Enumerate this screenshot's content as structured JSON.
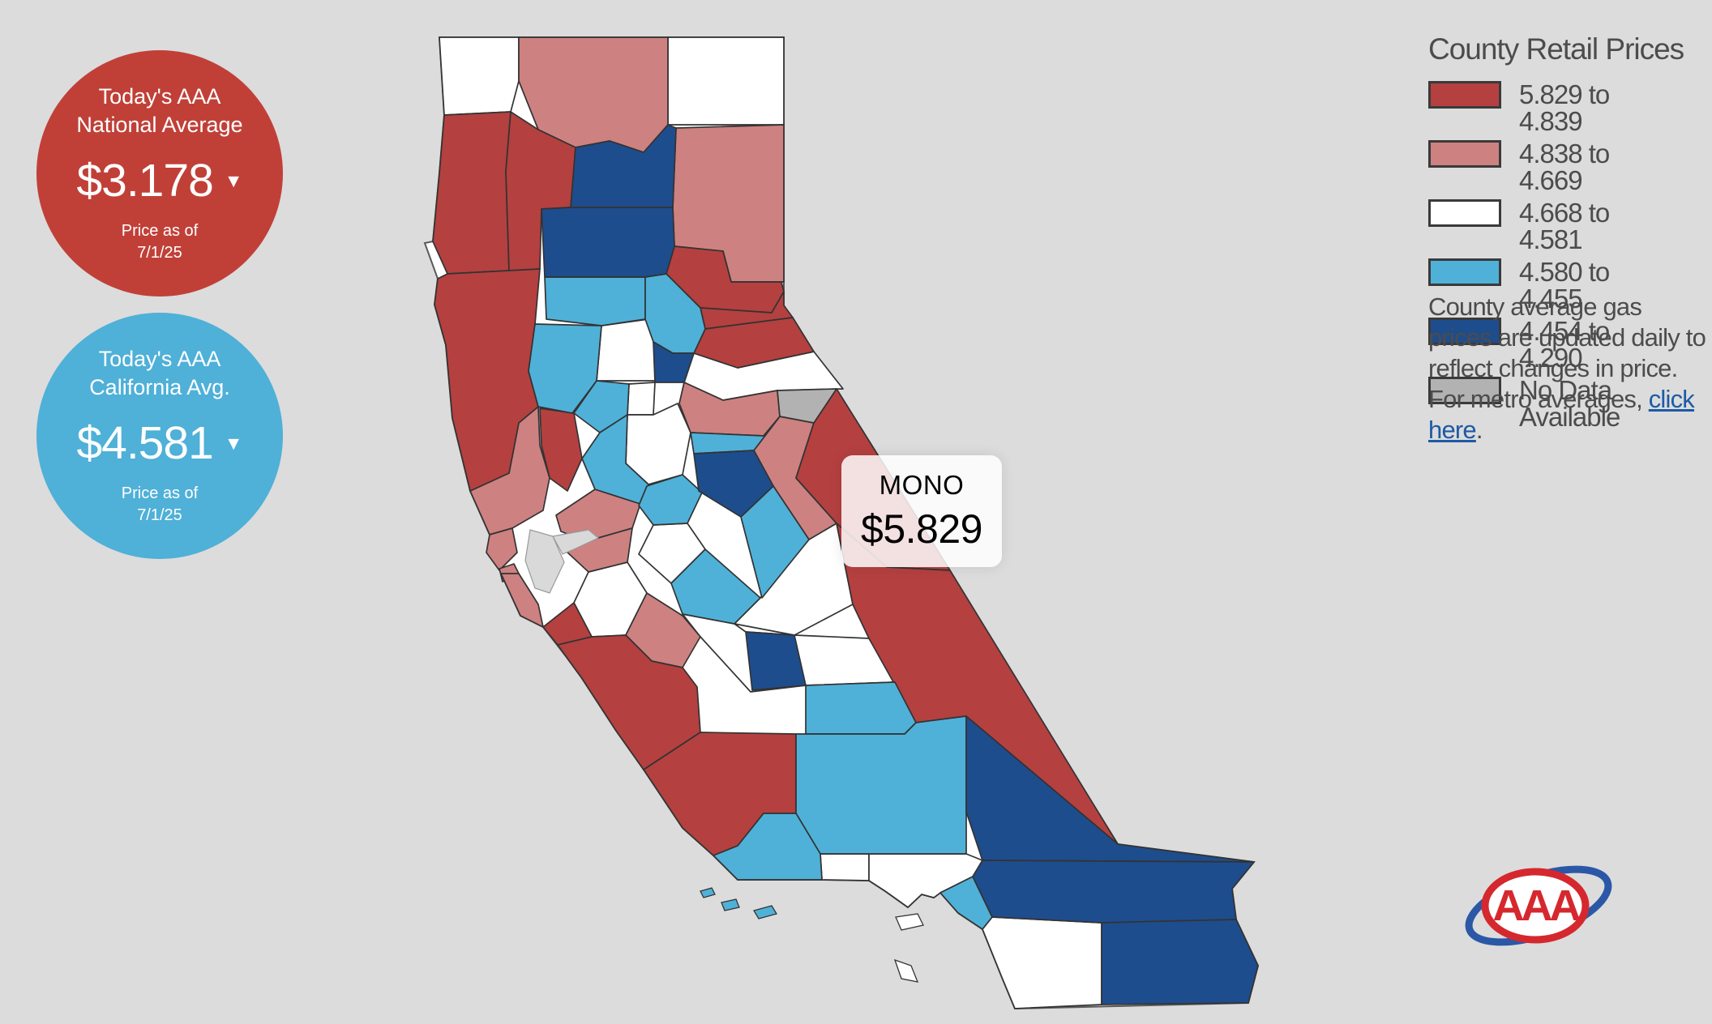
{
  "background": "#dcdcdc",
  "national_average": {
    "title_line1": "Today's AAA",
    "title_line2": "National Average",
    "price": "$3.178",
    "caret": "▼",
    "note_line1": "Price as of",
    "note_line2": "7/1/25",
    "color": "#c04038"
  },
  "california_average": {
    "title_line1": "Today's AAA",
    "title_line2": "California Avg.",
    "price": "$4.581",
    "caret": "▼",
    "note_line1": "Price as of",
    "note_line2": "7/1/25",
    "color": "#4fb0d8"
  },
  "legend": {
    "title": "County Retail Prices",
    "items": [
      {
        "label": "5.829 to 4.839",
        "color": "#b54040"
      },
      {
        "label": "4.838 to 4.669",
        "color": "#ce8181"
      },
      {
        "label": "4.668 to 4.581",
        "color": "#ffffff"
      },
      {
        "label": "4.580 to 4.455",
        "color": "#4fb1d8"
      },
      {
        "label": "4.454 to 4.290",
        "color": "#1e4d8d"
      },
      {
        "label": "No Data Available",
        "color": "#b2b2b2"
      }
    ]
  },
  "note": {
    "text_before": "County average gas prices are updated daily to reflect changes in price. For metro averages, ",
    "link_text": "click here",
    "text_after": ".",
    "link_color": "#1e5aa5"
  },
  "tooltip": {
    "county": "MONO",
    "price": "$5.829"
  },
  "map": {
    "stroke": "#333333",
    "state_border": "#5a5a5a",
    "state_fill": "#ffffff",
    "water_color": "#d9d9d9",
    "categories": {
      "cat1": "#b54040",
      "cat2": "#ce8181",
      "cat3": "#ffffff",
      "cat4": "#4fb1d8",
      "cat5": "#1e4d8d",
      "nodata": "#b2b2b2"
    },
    "counties": [
      {
        "id": "del-norte",
        "name": "Del Norte",
        "category": "cat3"
      },
      {
        "id": "modoc",
        "name": "Modoc",
        "category": "cat3"
      },
      {
        "id": "colusa",
        "name": "Colusa",
        "category": "cat3"
      },
      {
        "id": "sutter",
        "name": "Sutter",
        "category": "cat3"
      },
      {
        "id": "placer",
        "name": "Placer",
        "category": "cat3"
      },
      {
        "id": "sacramento",
        "name": "Sacramento",
        "category": "cat3"
      },
      {
        "id": "santa-clara",
        "name": "Santa Clara",
        "category": "cat3"
      },
      {
        "id": "stanislaus",
        "name": "Stanislaus",
        "category": "cat3"
      },
      {
        "id": "madera",
        "name": "Madera",
        "category": "cat3"
      },
      {
        "id": "fresno",
        "name": "Fresno",
        "category": "cat3"
      },
      {
        "id": "ventura",
        "name": "Ventura",
        "category": "cat3"
      },
      {
        "id": "los-angeles",
        "name": "Los Angeles",
        "category": "cat3"
      },
      {
        "id": "san-diego",
        "name": "San Diego",
        "category": "cat3"
      },
      {
        "id": "siskiyou",
        "name": "Siskiyou",
        "category": "cat2"
      },
      {
        "id": "lassen",
        "name": "Lassen",
        "category": "cat2"
      },
      {
        "id": "sonoma",
        "name": "Sonoma",
        "category": "cat2"
      },
      {
        "id": "marin",
        "name": "Marin",
        "category": "cat2"
      },
      {
        "id": "san-francisco",
        "name": "San Francisco",
        "category": "cat2"
      },
      {
        "id": "san-mateo",
        "name": "San Mateo",
        "category": "cat2"
      },
      {
        "id": "contra-costa",
        "name": "Contra Costa",
        "category": "cat2"
      },
      {
        "id": "alameda",
        "name": "Alameda",
        "category": "cat2"
      },
      {
        "id": "el-dorado",
        "name": "El Dorado",
        "category": "cat2"
      },
      {
        "id": "tuolumne",
        "name": "Tuolumne",
        "category": "cat2"
      },
      {
        "id": "san-benito",
        "name": "San Benito",
        "category": "cat2"
      },
      {
        "id": "humboldt",
        "name": "Humboldt",
        "category": "cat1"
      },
      {
        "id": "trinity",
        "name": "Trinity",
        "category": "cat1"
      },
      {
        "id": "mendocino",
        "name": "Mendocino",
        "category": "cat1"
      },
      {
        "id": "plumas",
        "name": "Plumas",
        "category": "cat1"
      },
      {
        "id": "sierra",
        "name": "Sierra",
        "category": "cat1"
      },
      {
        "id": "nevada",
        "name": "Nevada",
        "category": "cat1"
      },
      {
        "id": "napa",
        "name": "Napa",
        "category": "cat1"
      },
      {
        "id": "santa-cruz",
        "name": "Santa Cruz",
        "category": "cat1"
      },
      {
        "id": "mono",
        "name": "Mono",
        "category": "cat1"
      },
      {
        "id": "inyo",
        "name": "Inyo",
        "category": "cat1"
      },
      {
        "id": "monterey",
        "name": "Monterey",
        "category": "cat1"
      },
      {
        "id": "san-luis-obispo",
        "name": "San Luis Obispo",
        "category": "cat1"
      },
      {
        "id": "glenn",
        "name": "Glenn",
        "category": "cat4"
      },
      {
        "id": "butte",
        "name": "Butte",
        "category": "cat4"
      },
      {
        "id": "lake",
        "name": "Lake",
        "category": "cat4"
      },
      {
        "id": "yolo",
        "name": "Yolo",
        "category": "cat4"
      },
      {
        "id": "solano",
        "name": "Solano",
        "category": "cat4"
      },
      {
        "id": "amador",
        "name": "Amador",
        "category": "cat4"
      },
      {
        "id": "san-joaquin",
        "name": "San Joaquin",
        "category": "cat4"
      },
      {
        "id": "merced",
        "name": "Merced",
        "category": "cat4"
      },
      {
        "id": "mariposa",
        "name": "Mariposa",
        "category": "cat4"
      },
      {
        "id": "tulare",
        "name": "Tulare",
        "category": "cat4"
      },
      {
        "id": "kern",
        "name": "Kern",
        "category": "cat4"
      },
      {
        "id": "santa-barbara",
        "name": "Santa Barbara",
        "category": "cat4"
      },
      {
        "id": "orange",
        "name": "Orange",
        "category": "cat4"
      },
      {
        "id": "shasta",
        "name": "Shasta",
        "category": "cat5"
      },
      {
        "id": "tehama",
        "name": "Tehama",
        "category": "cat5"
      },
      {
        "id": "yuba",
        "name": "Yuba",
        "category": "cat5"
      },
      {
        "id": "calaveras",
        "name": "Calaveras",
        "category": "cat5"
      },
      {
        "id": "kings",
        "name": "Kings",
        "category": "cat5"
      },
      {
        "id": "san-bernardino",
        "name": "San Bernardino",
        "category": "cat5"
      },
      {
        "id": "riverside",
        "name": "Riverside",
        "category": "cat5"
      },
      {
        "id": "imperial",
        "name": "Imperial",
        "category": "cat5"
      },
      {
        "id": "alpine",
        "name": "Alpine",
        "category": "nodata"
      }
    ]
  },
  "logo": {
    "text": "AAA",
    "oval_color": "#d5282e",
    "swoosh_color": "#2b58a6"
  }
}
